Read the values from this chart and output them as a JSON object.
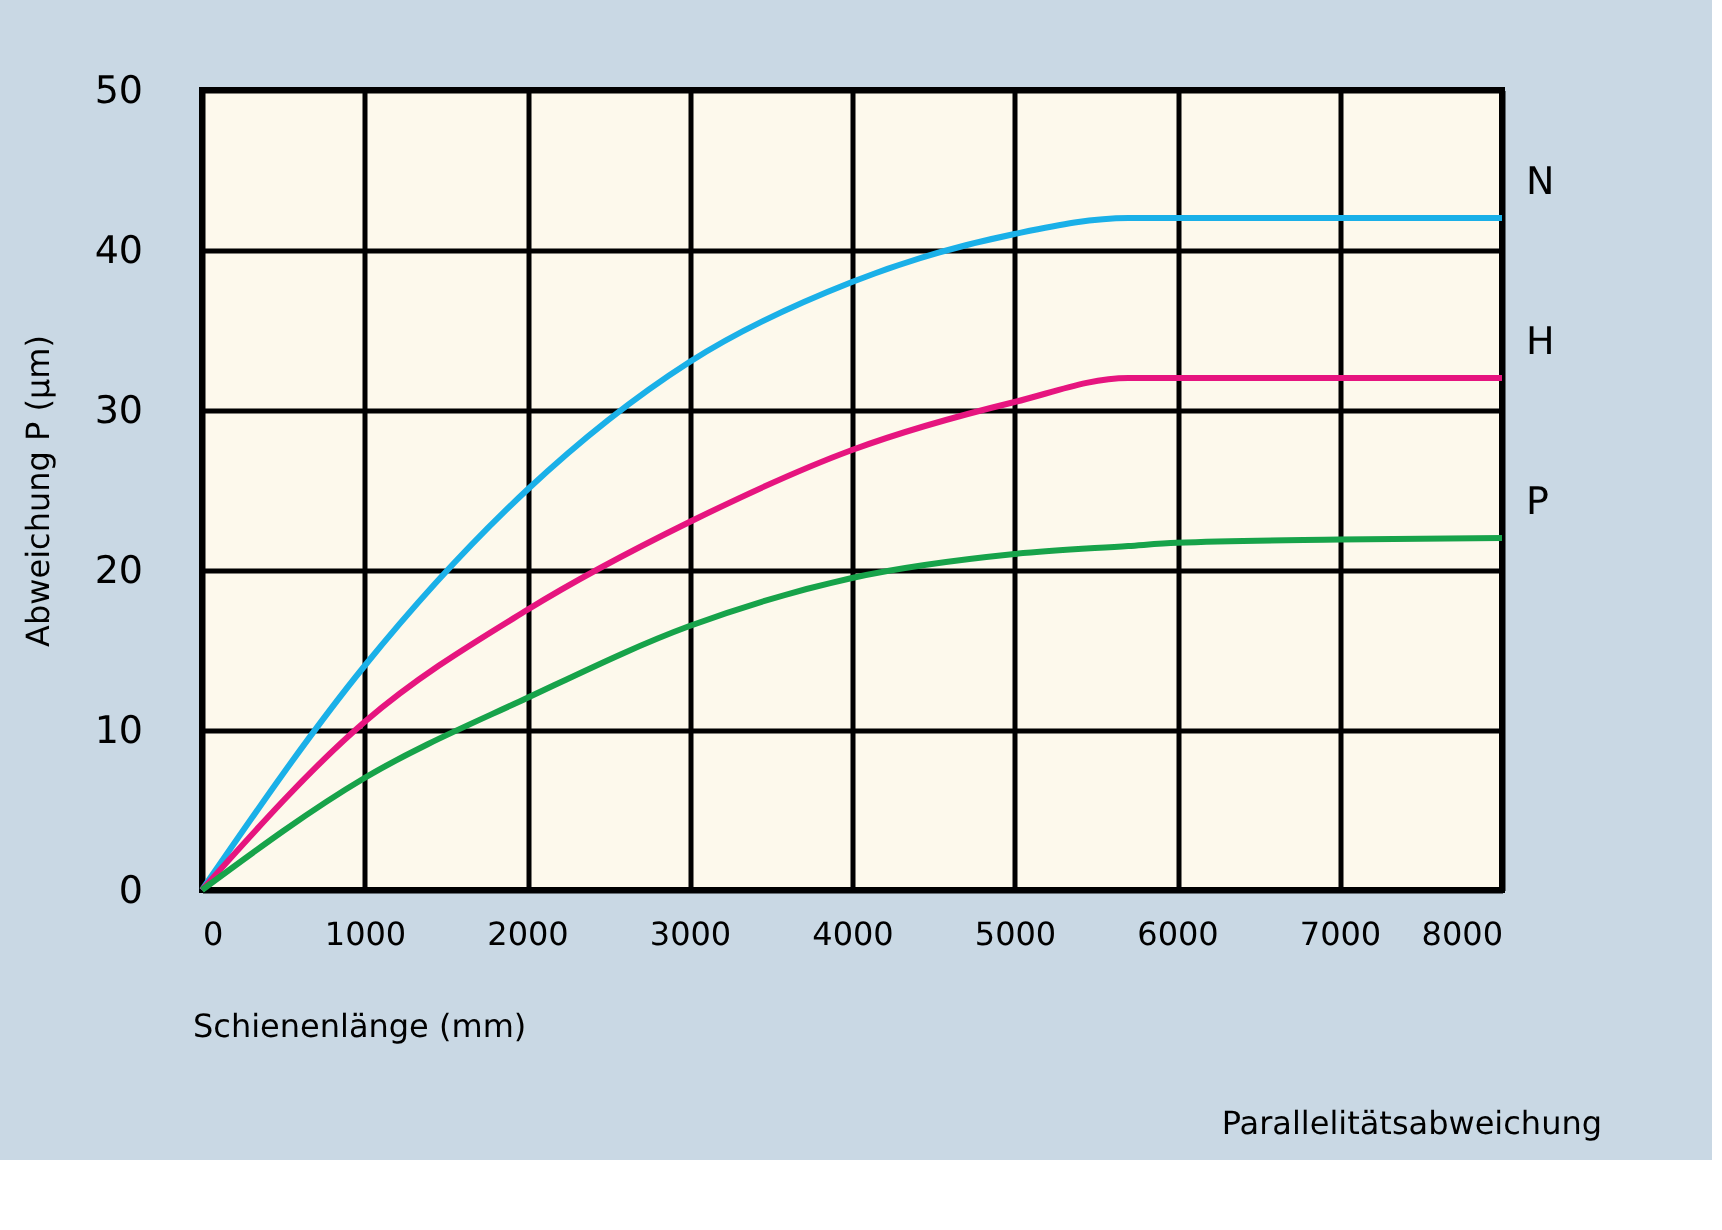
{
  "chart_data": {
    "type": "line",
    "xlabel": "Schienenlänge (mm)",
    "ylabel": "Abweichung P  (µm)",
    "xlim": [
      0,
      8000
    ],
    "xticks": [
      0,
      1000,
      2000,
      3000,
      4000,
      5000,
      6000,
      7000,
      8000
    ],
    "ylim": [
      0,
      50
    ],
    "yticks": [
      0,
      10,
      20,
      30,
      40,
      50
    ],
    "grid": true,
    "legend": false,
    "x": [
      0,
      1000,
      2000,
      3000,
      4000,
      5000,
      5700,
      6000,
      7000,
      8000
    ],
    "series": [
      {
        "name": "N",
        "color": "#1ab0e8",
        "values": [
          0,
          14,
          25,
          33,
          38,
          41,
          42,
          42,
          42,
          42
        ]
      },
      {
        "name": "H",
        "color": "#e6157f",
        "values": [
          0,
          10.5,
          17.5,
          23,
          27.5,
          30.5,
          32,
          32,
          32,
          32
        ]
      },
      {
        "name": "P",
        "color": "#17a34a",
        "values": [
          0,
          7,
          12,
          16.5,
          19.5,
          21,
          21.5,
          21.7,
          21.9,
          22
        ]
      }
    ],
    "annotations": [
      "Parallelitätsabweichung"
    ]
  }
}
